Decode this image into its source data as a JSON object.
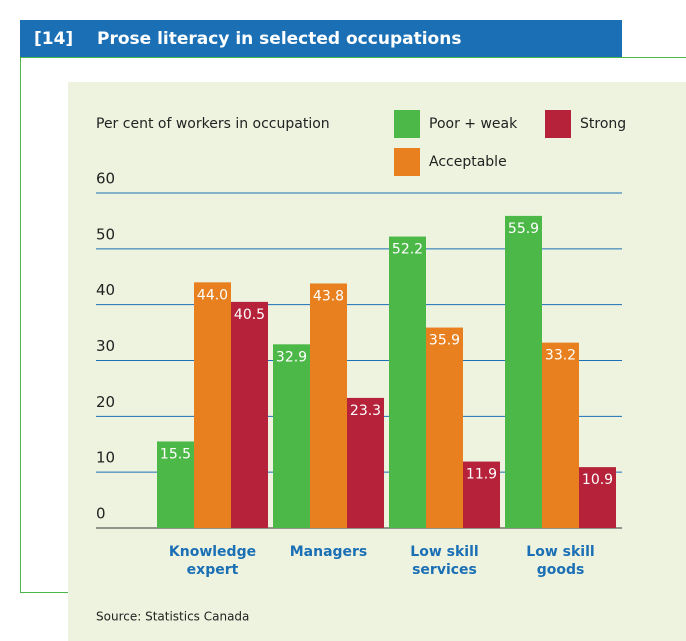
{
  "chart_data": {
    "type": "bar",
    "figure_number": "[14]",
    "title": "Prose literacy in selected occupations",
    "y_label": "Per cent of workers in occupation",
    "categories": [
      "Knowledge expert",
      "Managers",
      "Low skill services",
      "Low skill goods"
    ],
    "series": [
      {
        "name": "Poor + weak",
        "color": "#4cb848",
        "values": [
          15.5,
          32.9,
          52.2,
          55.9
        ],
        "value_labels": [
          "15.5",
          "32.9",
          "52.2",
          "55.9"
        ]
      },
      {
        "name": "Acceptable",
        "color": "#e8801f",
        "values": [
          44.0,
          43.8,
          35.9,
          33.2
        ],
        "value_labels": [
          "44.0",
          "43.8",
          "35.9",
          "33.2"
        ]
      },
      {
        "name": "Strong",
        "color": "#b5223a",
        "values": [
          40.5,
          23.3,
          11.9,
          10.9
        ],
        "value_labels": [
          "40.5",
          "23.3",
          "11.9",
          "10.9"
        ]
      }
    ],
    "ylim": [
      0,
      60
    ],
    "yticks": [
      0,
      10,
      20,
      30,
      40,
      50,
      60
    ],
    "grid": true,
    "source": "Source: Statistics Canada"
  }
}
